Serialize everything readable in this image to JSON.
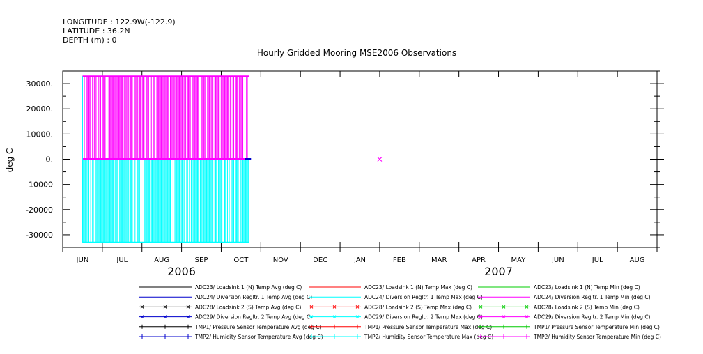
{
  "header": {
    "longitude": "LONGITUDE : 122.9W(-122.9)",
    "latitude": "LATITUDE : 36.2N",
    "depth": "DEPTH (m) : 0"
  },
  "chart_data": {
    "type": "line",
    "title": "Hourly Gridded Mooring MSE2006 Observations",
    "ylabel": "deg C",
    "xlabel": "",
    "ylim": [
      -35000,
      35000
    ],
    "yticks": [
      30000,
      20000,
      10000,
      0,
      -10000,
      -20000,
      -30000
    ],
    "ytick_labels": [
      "30000.",
      "20000.",
      "10000.",
      "0.",
      "-10000",
      "-20000",
      "-30000"
    ],
    "months": [
      "JUN",
      "JUL",
      "AUG",
      "SEP",
      "OCT",
      "NOV",
      "DEC",
      "JAN",
      "FEB",
      "MAR",
      "APR",
      "MAY",
      "JUN",
      "JUL",
      "AUG"
    ],
    "years": [
      {
        "label": "2006",
        "month_index": 3
      },
      {
        "label": "2007",
        "month_index": 11
      }
    ],
    "xlim_months": [
      0,
      15
    ],
    "grid": false,
    "legend_position": "bottom",
    "series_colors": {
      "max": "#ff00ff",
      "min": "#00ffff",
      "avg": "#0000cc"
    },
    "data_range": {
      "start_month": 0.5,
      "end_month": 4.7,
      "max_value": 33000,
      "min_value": -33000,
      "typical_value": 0
    },
    "isolated_point": {
      "month": 8.0,
      "value": 0
    },
    "series": [
      {
        "name": "ADC23/ Loadsink 1 (N) Temp Avg (deg C)",
        "color": "#000000",
        "marker": "none"
      },
      {
        "name": "ADC23/ Loadsink 1 (N) Temp Max (deg C)",
        "color": "#ff0000",
        "marker": "none"
      },
      {
        "name": "ADC23/ Loadsink 1 (N) Temp Min (deg C)",
        "color": "#00cc00",
        "marker": "none"
      },
      {
        "name": "ADC24/ Diversion Regltr. 1 Temp Avg (deg C)",
        "color": "#0000cc",
        "marker": "none"
      },
      {
        "name": "ADC24/ Diversion Regltr. 1 Temp Max (deg C)",
        "color": "#00ffff",
        "marker": "none"
      },
      {
        "name": "ADC24/ Diversion Regltr. 1 Temp Min (deg C)",
        "color": "#ff00ff",
        "marker": "none"
      },
      {
        "name": "ADC28/ Loadsink 2 (S) Temp Avg (deg C)",
        "color": "#000000",
        "marker": "x"
      },
      {
        "name": "ADC28/ Loadsink 2 (S) Temp Max (deg C)",
        "color": "#ff0000",
        "marker": "x"
      },
      {
        "name": "ADC28/ Loadsink 2 (S) Temp Min (deg C)",
        "color": "#00cc00",
        "marker": "x"
      },
      {
        "name": "ADC29/ Diversion Regltr. 2 Temp Avg (deg C)",
        "color": "#0000cc",
        "marker": "x"
      },
      {
        "name": "ADC29/ Diversion Regltr. 2 Temp Max (deg C)",
        "color": "#00ffff",
        "marker": "x"
      },
      {
        "name": "ADC29/ Diversion Regltr. 2 Temp Min (deg C)",
        "color": "#ff00ff",
        "marker": "x"
      },
      {
        "name": "TMP1/ Pressure Sensor Temperature Avg (deg C)",
        "color": "#000000",
        "marker": "plus"
      },
      {
        "name": "TMP1/ Pressure Sensor Temperature Max (deg C)",
        "color": "#ff0000",
        "marker": "plus"
      },
      {
        "name": "TMP1/ Pressure Sensor Temperature Min (deg C)",
        "color": "#00cc00",
        "marker": "plus"
      },
      {
        "name": "TMP2/ Humidity Sensor Temperature Avg (deg C)",
        "color": "#0000cc",
        "marker": "plus"
      },
      {
        "name": "TMP2/ Humidity Sensor Temperature Max (deg C)",
        "color": "#00ffff",
        "marker": "plus"
      },
      {
        "name": "TMP2/ Humidity Sensor Temperature Min (deg C)",
        "color": "#ff00ff",
        "marker": "plus"
      }
    ]
  }
}
